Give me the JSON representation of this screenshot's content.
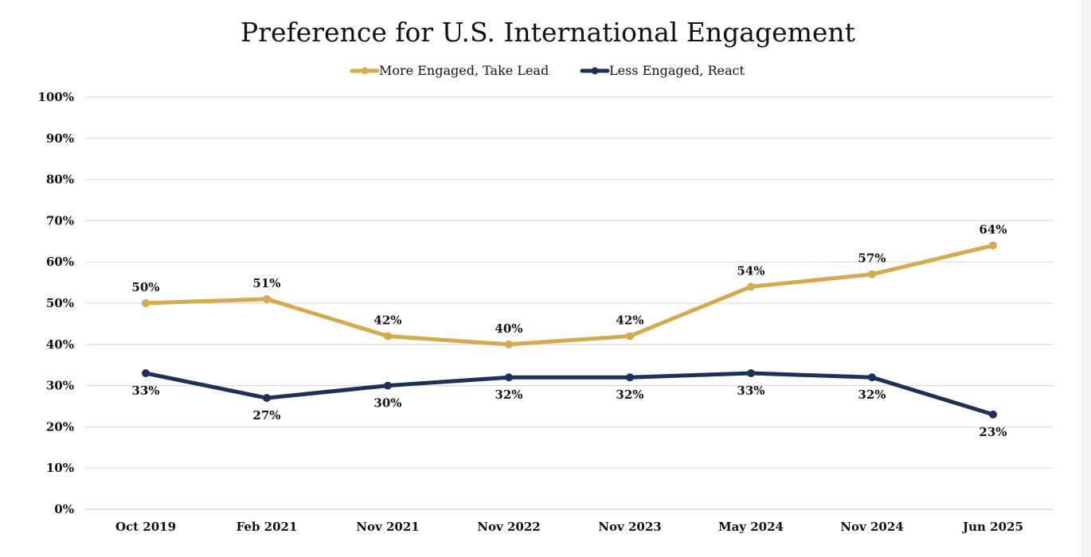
{
  "chart_data": {
    "type": "line",
    "title": "Preference for U.S. International Engagement",
    "xlabel": "",
    "ylabel": "",
    "categories": [
      "Oct 2019",
      "Feb 2021",
      "Nov 2021",
      "Nov 2022",
      "Nov 2023",
      "May 2024",
      "Nov 2024",
      "Jun 2025"
    ],
    "ylim": [
      0,
      100
    ],
    "yticks": [
      "0%",
      "10%",
      "20%",
      "30%",
      "40%",
      "50%",
      "60%",
      "70%",
      "80%",
      "90%",
      "100%"
    ],
    "grid": true,
    "legend_position": "top-center",
    "series": [
      {
        "name": "More Engaged, Take Lead",
        "color": "#D3AA4E",
        "values": [
          50,
          51,
          42,
          40,
          42,
          54,
          57,
          64
        ],
        "labels": [
          "50%",
          "51%",
          "42%",
          "40%",
          "42%",
          "54%",
          "57%",
          "64%"
        ],
        "label_position": "above"
      },
      {
        "name": "Less Engaged, React",
        "color": "#1C3155",
        "values": [
          33,
          27,
          30,
          32,
          32,
          33,
          32,
          23
        ],
        "labels": [
          "33%",
          "27%",
          "30%",
          "32%",
          "32%",
          "33%",
          "32%",
          "23%"
        ],
        "label_position": "below"
      }
    ]
  }
}
